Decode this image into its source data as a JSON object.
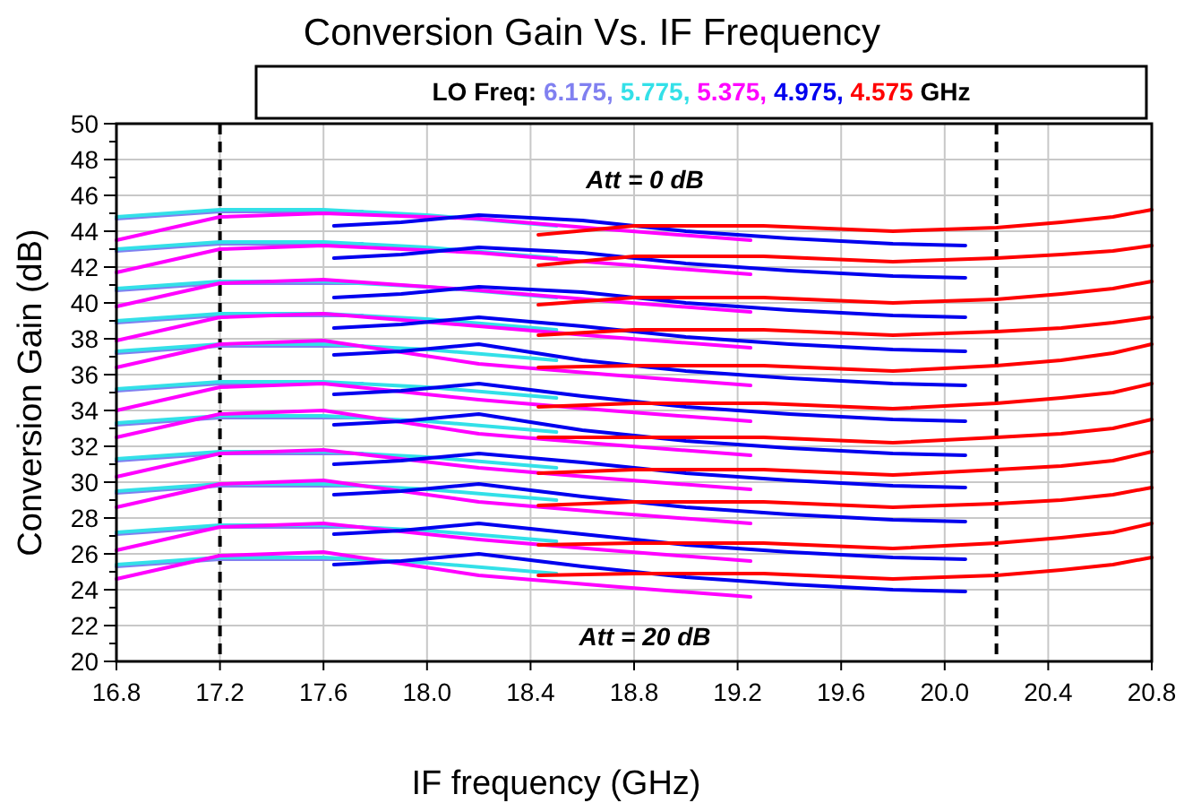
{
  "chart_data": {
    "type": "line",
    "title": "Conversion Gain Vs. IF Frequency",
    "xlabel": "IF frequency (GHz)",
    "ylabel": "Conversion Gain (dB)",
    "legend_title": "LO Freq:",
    "legend": "top",
    "grid": true,
    "marker": "none",
    "line_style": "solid",
    "xlim": [
      16.8,
      20.8
    ],
    "xticks": [
      16.8,
      17.2,
      17.6,
      {
        "value": 18,
        "label": "18.0"
      },
      18.4,
      18.8,
      19.2,
      19.6,
      {
        "value": 20,
        "label": "20.0"
      },
      20.4,
      20.8
    ],
    "ylim": [
      20,
      50
    ],
    "yticks": [
      20,
      {
        "value": 21,
        "label": null
      },
      22,
      {
        "value": 23,
        "label": null
      },
      24,
      {
        "value": 25,
        "label": null
      },
      26,
      {
        "value": 27,
        "label": null
      },
      28,
      {
        "value": 29,
        "label": null
      },
      30,
      {
        "value": 31,
        "label": null
      },
      32,
      {
        "value": 33,
        "label": null
      },
      34,
      {
        "value": 35,
        "label": null
      },
      36,
      {
        "value": 37,
        "label": null
      },
      38,
      {
        "value": 39,
        "label": null
      },
      40,
      {
        "value": 41,
        "label": null
      },
      42,
      {
        "value": 43,
        "label": null
      },
      44,
      {
        "value": 45,
        "label": null
      },
      46,
      {
        "value": 47,
        "label": null
      },
      48,
      {
        "value": 49,
        "label": null
      },
      50
    ],
    "ref_lines": [
      {
        "axis": "x",
        "value": 17.2,
        "color": "#000000",
        "line_style": "dashed"
      },
      {
        "axis": "x",
        "value": 20.2,
        "color": "#000000",
        "line_style": "dashed"
      }
    ],
    "annotations": [
      "Att = 0 dB",
      "Att = 20 dB",
      "GHz"
    ],
    "series": [
      {
        "name": "6.175,",
        "color": "#8080f0",
        "x": [
          16.8,
          17.2,
          17.75
        ],
        "values": [
          44.7,
          45.1,
          45.1
        ]
      },
      {
        "color": "#8080f0",
        "x": [
          16.8,
          17.2,
          17.75
        ],
        "values": [
          42.9,
          43.3,
          43.3
        ]
      },
      {
        "color": "#8080f0",
        "x": [
          16.8,
          17.2,
          17.75
        ],
        "values": [
          40.7,
          41.1,
          41.1
        ]
      },
      {
        "color": "#8080f0",
        "x": [
          16.8,
          17.2,
          17.75
        ],
        "values": [
          38.9,
          39.3,
          39.3
        ]
      },
      {
        "color": "#8080f0",
        "x": [
          16.8,
          17.2,
          17.75
        ],
        "values": [
          37.2,
          37.6,
          37.6
        ]
      },
      {
        "color": "#8080f0",
        "x": [
          16.8,
          17.2,
          17.75
        ],
        "values": [
          35.1,
          35.5,
          35.5
        ]
      },
      {
        "color": "#8080f0",
        "x": [
          16.8,
          17.2,
          17.75
        ],
        "values": [
          33.2,
          33.6,
          33.6
        ]
      },
      {
        "color": "#8080f0",
        "x": [
          16.8,
          17.2,
          17.75
        ],
        "values": [
          31.2,
          31.6,
          31.6
        ]
      },
      {
        "color": "#8080f0",
        "x": [
          16.8,
          17.2,
          17.75
        ],
        "values": [
          29.4,
          29.8,
          29.8
        ]
      },
      {
        "color": "#8080f0",
        "x": [
          16.8,
          17.2,
          17.75
        ],
        "values": [
          27.1,
          27.5,
          27.5
        ]
      },
      {
        "color": "#8080f0",
        "x": [
          16.8,
          17.2,
          17.75
        ],
        "values": [
          25.3,
          25.7,
          25.7
        ]
      },
      {
        "name": "5.775,",
        "color": "#33e0e8",
        "x": [
          16.8,
          17.2,
          17.6,
          18.0,
          18.5
        ],
        "values": [
          44.8,
          45.2,
          45.2,
          44.9,
          44.3
        ]
      },
      {
        "color": "#33e0e8",
        "x": [
          16.8,
          17.2,
          17.6,
          18.0,
          18.5
        ],
        "values": [
          43.0,
          43.4,
          43.4,
          43.1,
          42.5
        ]
      },
      {
        "color": "#33e0e8",
        "x": [
          16.8,
          17.2,
          17.6,
          18.0,
          18.5
        ],
        "values": [
          40.8,
          41.2,
          41.2,
          40.9,
          40.3
        ]
      },
      {
        "color": "#33e0e8",
        "x": [
          16.8,
          17.2,
          17.6,
          18.0,
          18.5
        ],
        "values": [
          39.0,
          39.4,
          39.4,
          39.1,
          38.5
        ]
      },
      {
        "color": "#33e0e8",
        "x": [
          16.8,
          17.2,
          17.6,
          18.0,
          18.5
        ],
        "values": [
          37.3,
          37.7,
          37.7,
          37.4,
          36.8
        ]
      },
      {
        "color": "#33e0e8",
        "x": [
          16.8,
          17.2,
          17.6,
          18.0,
          18.5
        ],
        "values": [
          35.2,
          35.6,
          35.6,
          35.3,
          34.7
        ]
      },
      {
        "color": "#33e0e8",
        "x": [
          16.8,
          17.2,
          17.6,
          18.0,
          18.5
        ],
        "values": [
          33.3,
          33.7,
          33.7,
          33.4,
          32.8
        ]
      },
      {
        "color": "#33e0e8",
        "x": [
          16.8,
          17.2,
          17.6,
          18.0,
          18.5
        ],
        "values": [
          31.3,
          31.7,
          31.7,
          31.4,
          30.8
        ]
      },
      {
        "color": "#33e0e8",
        "x": [
          16.8,
          17.2,
          17.6,
          18.0,
          18.5
        ],
        "values": [
          29.5,
          29.9,
          29.9,
          29.6,
          29.0
        ]
      },
      {
        "color": "#33e0e8",
        "x": [
          16.8,
          17.2,
          17.6,
          18.0,
          18.5
        ],
        "values": [
          27.2,
          27.6,
          27.6,
          27.3,
          26.7
        ]
      },
      {
        "color": "#33e0e8",
        "x": [
          16.8,
          17.2,
          17.6,
          18.0,
          18.5
        ],
        "values": [
          25.4,
          25.8,
          25.8,
          25.5,
          24.9
        ]
      },
      {
        "name": "5.375,",
        "color": "#ff00ff",
        "x": [
          16.8,
          17.2,
          17.6,
          18.2,
          18.7,
          19.25
        ],
        "values": [
          43.5,
          44.8,
          45.0,
          44.7,
          44.1,
          43.5
        ]
      },
      {
        "color": "#ff00ff",
        "x": [
          16.8,
          17.2,
          17.6,
          18.2,
          18.7,
          19.25
        ],
        "values": [
          41.7,
          43.0,
          43.2,
          42.8,
          42.2,
          41.6
        ]
      },
      {
        "color": "#ff00ff",
        "x": [
          16.8,
          17.2,
          17.6,
          18.2,
          18.7,
          19.25
        ],
        "values": [
          39.8,
          41.1,
          41.3,
          40.7,
          40.1,
          39.5
        ]
      },
      {
        "color": "#ff00ff",
        "x": [
          16.8,
          17.2,
          17.6,
          18.2,
          18.7,
          19.25
        ],
        "values": [
          37.9,
          39.2,
          39.4,
          38.7,
          38.1,
          37.5
        ]
      },
      {
        "color": "#ff00ff",
        "x": [
          16.8,
          17.2,
          17.6,
          18.2,
          18.7,
          19.25
        ],
        "values": [
          36.4,
          37.7,
          37.9,
          36.6,
          36.0,
          35.4
        ]
      },
      {
        "color": "#ff00ff",
        "x": [
          16.8,
          17.2,
          17.6,
          18.2,
          18.7,
          19.25
        ],
        "values": [
          34.0,
          35.3,
          35.5,
          34.6,
          34.0,
          33.4
        ]
      },
      {
        "color": "#ff00ff",
        "x": [
          16.8,
          17.2,
          17.6,
          18.2,
          18.7,
          19.25
        ],
        "values": [
          32.5,
          33.8,
          34.0,
          32.7,
          32.1,
          31.5
        ]
      },
      {
        "color": "#ff00ff",
        "x": [
          16.8,
          17.2,
          17.6,
          18.2,
          18.7,
          19.25
        ],
        "values": [
          30.3,
          31.6,
          31.8,
          30.8,
          30.2,
          29.6
        ]
      },
      {
        "color": "#ff00ff",
        "x": [
          16.8,
          17.2,
          17.6,
          18.2,
          18.7,
          19.25
        ],
        "values": [
          28.6,
          29.9,
          30.1,
          28.9,
          28.3,
          27.7
        ]
      },
      {
        "color": "#ff00ff",
        "x": [
          16.8,
          17.2,
          17.6,
          18.2,
          18.7,
          19.25
        ],
        "values": [
          26.2,
          27.5,
          27.7,
          26.8,
          26.2,
          25.6
        ]
      },
      {
        "color": "#ff00ff",
        "x": [
          16.8,
          17.2,
          17.6,
          18.2,
          18.7,
          19.25
        ],
        "values": [
          24.6,
          25.9,
          26.1,
          24.8,
          24.2,
          23.6
        ]
      },
      {
        "name": "4.975,",
        "color": "#0000ee",
        "x": [
          17.64,
          17.9,
          18.2,
          18.6,
          19.0,
          19.4,
          19.8,
          20.08
        ],
        "values": [
          44.3,
          44.5,
          44.9,
          44.6,
          44.0,
          43.6,
          43.3,
          43.2
        ]
      },
      {
        "color": "#0000ee",
        "x": [
          17.64,
          17.9,
          18.2,
          18.6,
          19.0,
          19.4,
          19.8,
          20.08
        ],
        "values": [
          42.5,
          42.7,
          43.1,
          42.8,
          42.2,
          41.8,
          41.5,
          41.4
        ]
      },
      {
        "color": "#0000ee",
        "x": [
          17.64,
          17.9,
          18.2,
          18.6,
          19.0,
          19.4,
          19.8,
          20.08
        ],
        "values": [
          40.3,
          40.5,
          40.9,
          40.6,
          40.0,
          39.6,
          39.3,
          39.2
        ]
      },
      {
        "color": "#0000ee",
        "x": [
          17.64,
          17.9,
          18.2,
          18.6,
          19.0,
          19.4,
          19.8,
          20.08
        ],
        "values": [
          38.6,
          38.8,
          39.2,
          38.7,
          38.1,
          37.7,
          37.4,
          37.3
        ]
      },
      {
        "color": "#0000ee",
        "x": [
          17.64,
          17.9,
          18.2,
          18.6,
          19.0,
          19.4,
          19.8,
          20.08
        ],
        "values": [
          37.1,
          37.3,
          37.7,
          36.8,
          36.2,
          35.8,
          35.5,
          35.4
        ]
      },
      {
        "color": "#0000ee",
        "x": [
          17.64,
          17.9,
          18.2,
          18.6,
          19.0,
          19.4,
          19.8,
          20.08
        ],
        "values": [
          34.9,
          35.1,
          35.5,
          34.8,
          34.2,
          33.8,
          33.5,
          33.4
        ]
      },
      {
        "color": "#0000ee",
        "x": [
          17.64,
          17.9,
          18.2,
          18.6,
          19.0,
          19.4,
          19.8,
          20.08
        ],
        "values": [
          33.2,
          33.4,
          33.8,
          32.9,
          32.3,
          31.9,
          31.6,
          31.5
        ]
      },
      {
        "color": "#0000ee",
        "x": [
          17.64,
          17.9,
          18.2,
          18.6,
          19.0,
          19.4,
          19.8,
          20.08
        ],
        "values": [
          31.0,
          31.2,
          31.6,
          31.1,
          30.5,
          30.1,
          29.8,
          29.7
        ]
      },
      {
        "color": "#0000ee",
        "x": [
          17.64,
          17.9,
          18.2,
          18.6,
          19.0,
          19.4,
          19.8,
          20.08
        ],
        "values": [
          29.3,
          29.5,
          29.9,
          29.2,
          28.6,
          28.2,
          27.9,
          27.8
        ]
      },
      {
        "color": "#0000ee",
        "x": [
          17.64,
          17.9,
          18.2,
          18.6,
          19.0,
          19.4,
          19.8,
          20.08
        ],
        "values": [
          27.1,
          27.3,
          27.7,
          27.1,
          26.5,
          26.1,
          25.8,
          25.7
        ]
      },
      {
        "color": "#0000ee",
        "x": [
          17.64,
          17.9,
          18.2,
          18.6,
          19.0,
          19.4,
          19.8,
          20.08
        ],
        "values": [
          25.4,
          25.6,
          26.0,
          25.3,
          24.7,
          24.3,
          24.0,
          23.9
        ]
      },
      {
        "name": "4.575",
        "color": "#ff0000",
        "x": [
          18.43,
          18.8,
          19.3,
          19.8,
          20.2,
          20.45,
          20.65,
          20.8
        ],
        "values": [
          43.8,
          44.3,
          44.3,
          44.0,
          44.2,
          44.5,
          44.8,
          45.2
        ]
      },
      {
        "color": "#ff0000",
        "x": [
          18.43,
          18.8,
          19.3,
          19.8,
          20.2,
          20.45,
          20.65,
          20.8
        ],
        "values": [
          42.1,
          42.6,
          42.6,
          42.3,
          42.5,
          42.7,
          42.9,
          43.2
        ]
      },
      {
        "color": "#ff0000",
        "x": [
          18.43,
          18.8,
          19.3,
          19.8,
          20.2,
          20.45,
          20.65,
          20.8
        ],
        "values": [
          39.9,
          40.3,
          40.3,
          40.0,
          40.2,
          40.5,
          40.8,
          41.2
        ]
      },
      {
        "color": "#ff0000",
        "x": [
          18.43,
          18.8,
          19.3,
          19.8,
          20.2,
          20.45,
          20.65,
          20.8
        ],
        "values": [
          38.2,
          38.5,
          38.5,
          38.2,
          38.4,
          38.6,
          38.9,
          39.2
        ]
      },
      {
        "color": "#ff0000",
        "x": [
          18.43,
          18.8,
          19.3,
          19.8,
          20.2,
          20.45,
          20.65,
          20.8
        ],
        "values": [
          36.4,
          36.5,
          36.5,
          36.2,
          36.5,
          36.8,
          37.2,
          37.7
        ]
      },
      {
        "color": "#ff0000",
        "x": [
          18.43,
          18.8,
          19.3,
          19.8,
          20.2,
          20.45,
          20.65,
          20.8
        ],
        "values": [
          34.2,
          34.4,
          34.4,
          34.1,
          34.4,
          34.7,
          35.0,
          35.5
        ]
      },
      {
        "color": "#ff0000",
        "x": [
          18.43,
          18.8,
          19.3,
          19.8,
          20.2,
          20.45,
          20.65,
          20.8
        ],
        "values": [
          32.5,
          32.5,
          32.5,
          32.2,
          32.5,
          32.7,
          33.0,
          33.5
        ]
      },
      {
        "color": "#ff0000",
        "x": [
          18.43,
          18.8,
          19.3,
          19.8,
          20.2,
          20.45,
          20.65,
          20.8
        ],
        "values": [
          30.5,
          30.7,
          30.7,
          30.4,
          30.7,
          30.9,
          31.2,
          31.7
        ]
      },
      {
        "color": "#ff0000",
        "x": [
          18.43,
          18.8,
          19.3,
          19.8,
          20.2,
          20.45,
          20.65,
          20.8
        ],
        "values": [
          28.7,
          28.9,
          28.9,
          28.6,
          28.8,
          29.0,
          29.3,
          29.7
        ]
      },
      {
        "color": "#ff0000",
        "x": [
          18.43,
          18.8,
          19.3,
          19.8,
          20.2,
          20.45,
          20.65,
          20.8
        ],
        "values": [
          26.5,
          26.6,
          26.6,
          26.3,
          26.6,
          26.9,
          27.2,
          27.7
        ]
      },
      {
        "color": "#ff0000",
        "x": [
          18.43,
          18.8,
          19.3,
          19.8,
          20.2,
          20.45,
          20.65,
          20.8
        ],
        "values": [
          24.8,
          24.9,
          24.9,
          24.6,
          24.8,
          25.1,
          25.4,
          25.8
        ]
      }
    ]
  }
}
